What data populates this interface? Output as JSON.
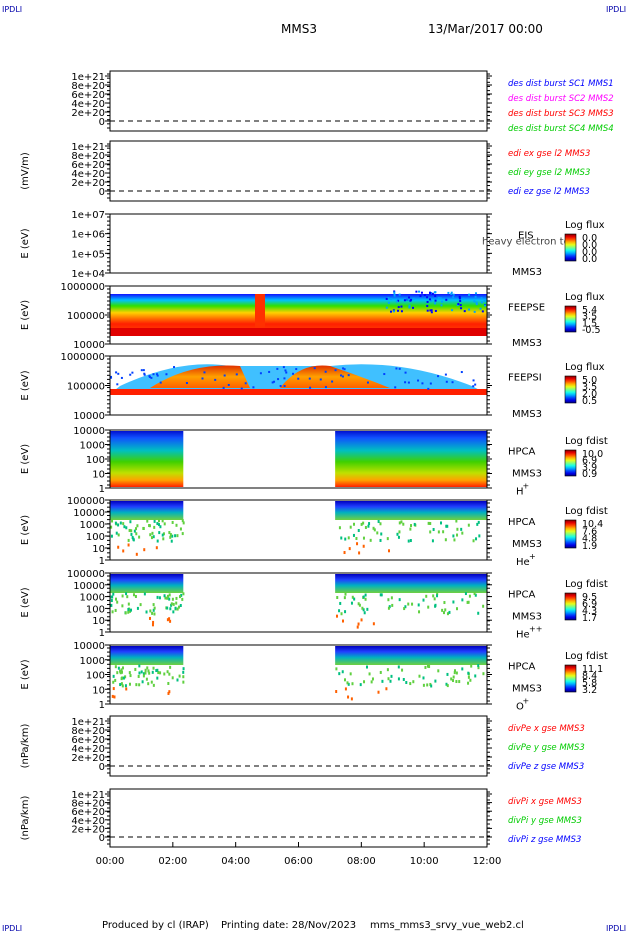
{
  "corner_text": "IPDLI",
  "header": {
    "spacecraft": "MMS3",
    "datetime": "13/Mar/2017 00:00"
  },
  "footer": {
    "produced_by": "Produced by cl (IRAP)",
    "printing_date": "Printing date: 28/Nov/2023",
    "script": "mms_mms3_srvy_vue_web2.cl"
  },
  "colors": {
    "red": "#ff0000",
    "green": "#00cc00",
    "blue": "#0000ff",
    "magenta": "#ff00ff"
  },
  "chart_data": [
    {
      "type": "line",
      "panel": "des-dist-burst",
      "ylabel": "",
      "ytick_labels": [
        "1e+21",
        "8e+20",
        "6e+20",
        "4e+20",
        "2e+20",
        "0"
      ],
      "legend": [
        {
          "text": "des dist burst SC1 MMS1",
          "color": "#0000ff"
        },
        {
          "text": "des dist burst SC2 MMS2",
          "color": "#ff00ff"
        },
        {
          "text": "des dist burst SC3 MMS3",
          "color": "#ff0000"
        },
        {
          "text": "des dist burst SC4 MMS4",
          "color": "#00cc00"
        }
      ],
      "series": []
    },
    {
      "type": "line",
      "panel": "edi-e-gse",
      "ylabel": "(mV/m)",
      "ytick_labels": [
        "1e+21",
        "8e+20",
        "6e+20",
        "4e+20",
        "2e+20",
        "0"
      ],
      "legend": [
        {
          "text": "edi ex gse l2 MMS3",
          "color": "#ff0000"
        },
        {
          "text": "edi ey gse l2 MMS3",
          "color": "#00cc00"
        },
        {
          "text": "edi ez gse l2 MMS3",
          "color": "#0000ff"
        }
      ],
      "series": []
    },
    {
      "type": "heatmap",
      "panel": "eis",
      "ylabel": "E (eV)",
      "ytick_labels": [
        "1e+07",
        "1e+06",
        "1e+05",
        "1e+04"
      ],
      "yscale": "log",
      "instrument": "EIS",
      "spacecraft": "MMS3",
      "overlay_text": "heavy electron to",
      "colorbar": {
        "title": "Log flux",
        "ticks": [
          "0.0",
          "0.0",
          "0.0",
          "0.0"
        ]
      },
      "data_coverage": []
    },
    {
      "type": "heatmap",
      "panel": "feeps-e",
      "ylabel": "E (eV)",
      "ytick_labels": [
        "1000000",
        "100000",
        "10000"
      ],
      "yscale": "log",
      "instrument": "FEEPSE",
      "spacecraft": "MMS3",
      "colorbar": {
        "title": "Log flux",
        "ticks": [
          "5.4",
          "3.5",
          "1.5",
          "-0.5"
        ]
      },
      "data_coverage": [
        [
          "00:00",
          "12:00"
        ]
      ]
    },
    {
      "type": "heatmap",
      "panel": "feeps-i",
      "ylabel": "E (eV)",
      "ytick_labels": [
        "1000000",
        "100000",
        "10000"
      ],
      "yscale": "log",
      "instrument": "FEEPSI",
      "spacecraft": "MMS3",
      "colorbar": {
        "title": "Log flux",
        "ticks": [
          "5.0",
          "3.5",
          "2.0",
          "0.5"
        ]
      },
      "data_coverage": [
        [
          "00:00",
          "12:00"
        ]
      ]
    },
    {
      "type": "heatmap",
      "panel": "hpca-h",
      "ylabel": "E (eV)",
      "ytick_labels": [
        "10000",
        "1000",
        "100",
        "10",
        "1"
      ],
      "yscale": "log",
      "instrument": "HPCA",
      "spacecraft": "MMS3",
      "species": "H",
      "charge": "+",
      "colorbar": {
        "title": "Log fdist",
        "ticks": [
          "10.0",
          "6.9",
          "3.9",
          "0.9"
        ]
      },
      "data_coverage": [
        [
          "00:00",
          "02:20"
        ],
        [
          "07:10",
          "12:00"
        ]
      ]
    },
    {
      "type": "heatmap",
      "panel": "hpca-he1",
      "ylabel": "E (eV)",
      "ytick_labels": [
        "100000",
        "10000",
        "1000",
        "100",
        "10",
        "1"
      ],
      "yscale": "log",
      "instrument": "HPCA",
      "spacecraft": "MMS3",
      "species": "He",
      "charge": "+",
      "colorbar": {
        "title": "Log fdist",
        "ticks": [
          "10.4",
          "7.6",
          "4.8",
          "1.9"
        ]
      },
      "data_coverage": [
        [
          "00:00",
          "02:20"
        ],
        [
          "07:10",
          "12:00"
        ]
      ]
    },
    {
      "type": "heatmap",
      "panel": "hpca-he2",
      "ylabel": "E (eV)",
      "ytick_labels": [
        "100000",
        "10000",
        "1000",
        "100",
        "10",
        "1"
      ],
      "yscale": "log",
      "instrument": "HPCA",
      "spacecraft": "MMS3",
      "species": "He",
      "charge": "++",
      "colorbar": {
        "title": "Log fdist",
        "ticks": [
          "9.5",
          "6.9",
          "4.3",
          "1.7"
        ]
      },
      "data_coverage": [
        [
          "00:00",
          "02:20"
        ],
        [
          "07:10",
          "12:00"
        ]
      ]
    },
    {
      "type": "heatmap",
      "panel": "hpca-o",
      "ylabel": "E (eV)",
      "ytick_labels": [
        "10000",
        "1000",
        "100",
        "10",
        "1"
      ],
      "yscale": "log",
      "instrument": "HPCA",
      "spacecraft": "MMS3",
      "species": "O",
      "charge": "+",
      "colorbar": {
        "title": "Log fdist",
        "ticks": [
          "11.1",
          "8.4",
          "5.8",
          "3.2"
        ]
      },
      "data_coverage": [
        [
          "00:00",
          "02:20"
        ],
        [
          "07:10",
          "12:00"
        ]
      ]
    },
    {
      "type": "line",
      "panel": "divpe",
      "ylabel": "(nPa/km)",
      "ytick_labels": [
        "1e+21",
        "8e+20",
        "6e+20",
        "4e+20",
        "2e+20",
        "0"
      ],
      "legend": [
        {
          "text": "divPe x gse MMS3",
          "color": "#ff0000"
        },
        {
          "text": "divPe y gse MMS3",
          "color": "#00cc00"
        },
        {
          "text": "divPe z gse MMS3",
          "color": "#0000ff"
        }
      ],
      "series": []
    },
    {
      "type": "line",
      "panel": "divpi",
      "ylabel": "(nPa/km)",
      "ytick_labels": [
        "1e+21",
        "8e+20",
        "6e+20",
        "4e+20",
        "2e+20",
        "0"
      ],
      "legend": [
        {
          "text": "divPi x gse MMS3",
          "color": "#ff0000"
        },
        {
          "text": "divPi y gse MMS3",
          "color": "#00cc00"
        },
        {
          "text": "divPi z gse MMS3",
          "color": "#0000ff"
        }
      ],
      "series": []
    }
  ],
  "time_axis": {
    "tick_labels": [
      "00:00",
      "02:00",
      "04:00",
      "06:00",
      "08:00",
      "10:00",
      "12:00"
    ]
  }
}
